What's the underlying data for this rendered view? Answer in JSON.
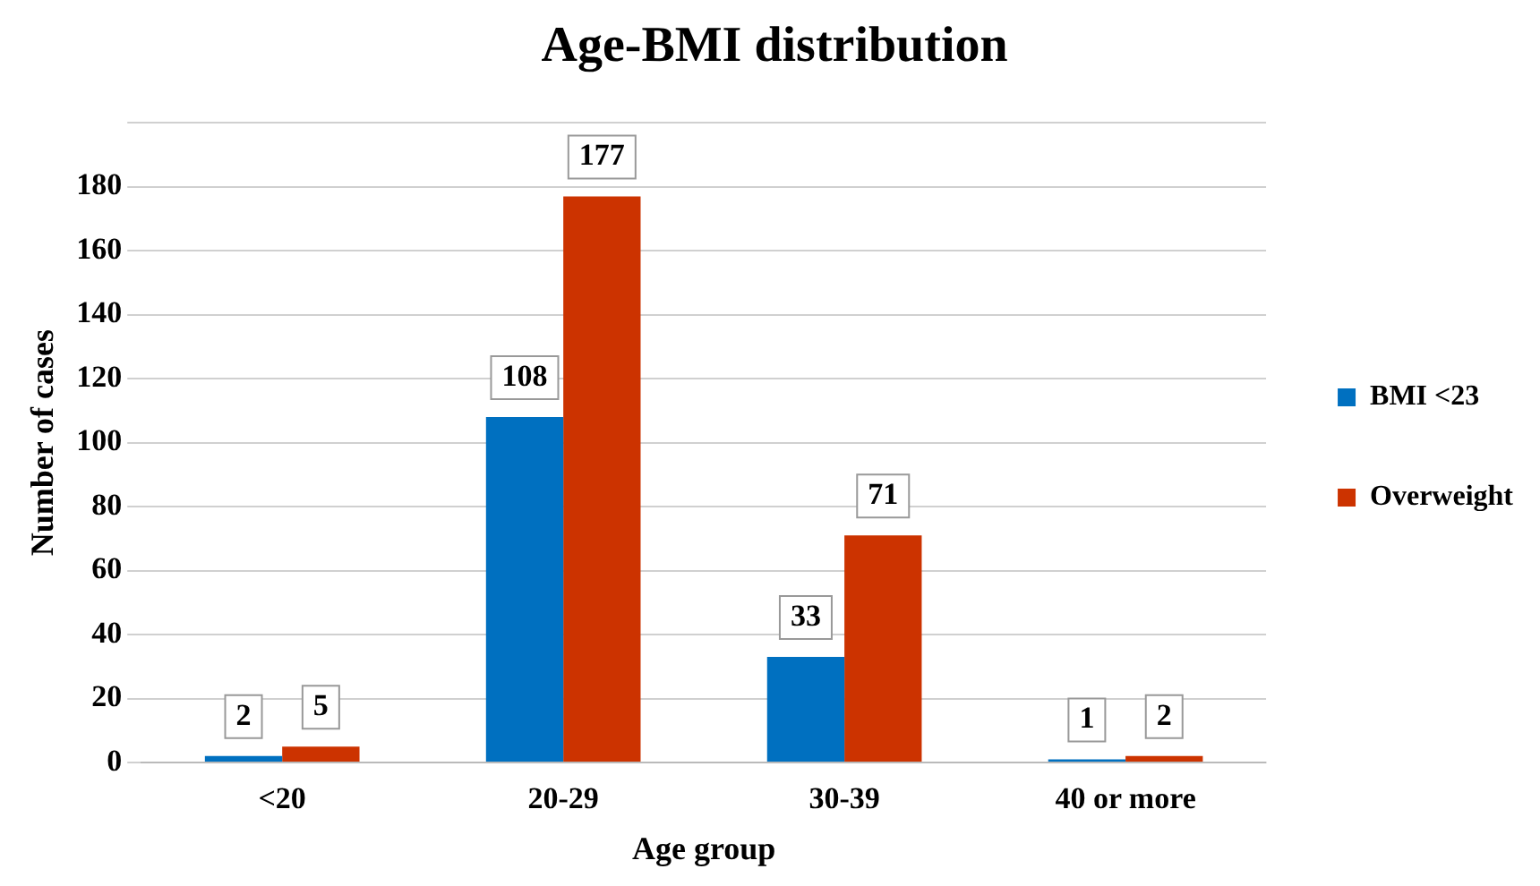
{
  "chart_data": {
    "type": "bar",
    "title": "Age-BMI distribution",
    "xlabel": "Age group",
    "ylabel": "Number of cases",
    "categories": [
      "<20",
      "20-29",
      "30-39",
      "40 or more"
    ],
    "series": [
      {
        "name": "BMI <23",
        "color": "#0070c0",
        "values": [
          2,
          108,
          33,
          1
        ]
      },
      {
        "name": "Overweight",
        "color": "#cc3300",
        "values": [
          5,
          177,
          71,
          2
        ]
      }
    ],
    "ylim": [
      0,
      200
    ],
    "yticks": [
      0,
      20,
      40,
      60,
      80,
      100,
      120,
      140,
      160,
      180,
      {
        "value": 200,
        "label": null
      }
    ],
    "grid": "y",
    "legend": "right",
    "data_labels": true
  }
}
